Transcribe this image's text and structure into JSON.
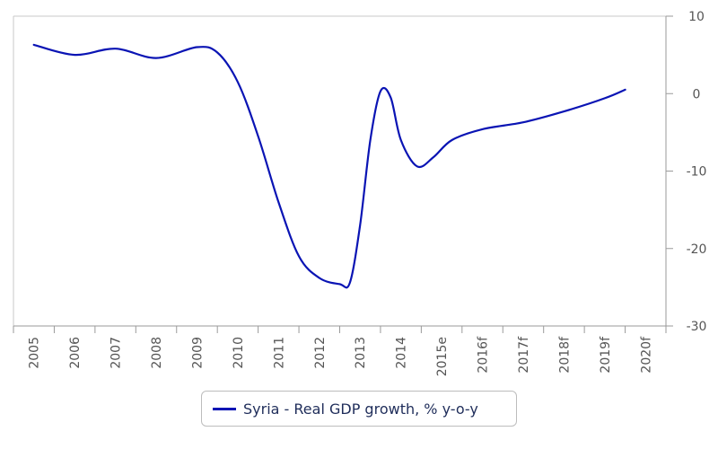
{
  "chart_data": {
    "type": "line",
    "title": "",
    "xlabel": "",
    "ylabel": "",
    "categories": [
      "2005",
      "2006",
      "2007",
      "2008",
      "2009",
      "2010",
      "2011",
      "2012",
      "2013",
      "2014",
      "2015e",
      "2016f",
      "2017f",
      "2018f",
      "2019f",
      "2020f"
    ],
    "ylim": [
      -30,
      10
    ],
    "yticks": [
      10,
      0,
      -10,
      -20,
      -30
    ],
    "y_axis_side": "right",
    "grid": false,
    "legend_position": "bottom-center",
    "series": [
      {
        "name": "Syria - Real GDP growth, % y-o-y",
        "color": "#0a14b4",
        "points": [
          {
            "x": 2005.5,
            "y": 6.3
          },
          {
            "x": 2006.5,
            "y": 5.0
          },
          {
            "x": 2007.5,
            "y": 5.8
          },
          {
            "x": 2008.5,
            "y": 4.6
          },
          {
            "x": 2009.5,
            "y": 6.0
          },
          {
            "x": 2010.0,
            "y": 5.3
          },
          {
            "x": 2010.5,
            "y": 1.5
          },
          {
            "x": 2011.0,
            "y": -5.5
          },
          {
            "x": 2011.5,
            "y": -14.0
          },
          {
            "x": 2012.0,
            "y": -21.0
          },
          {
            "x": 2012.5,
            "y": -23.8
          },
          {
            "x": 2013.0,
            "y": -24.6
          },
          {
            "x": 2013.25,
            "y": -24.4
          },
          {
            "x": 2013.5,
            "y": -17.0
          },
          {
            "x": 2013.75,
            "y": -6.0
          },
          {
            "x": 2014.0,
            "y": 0.3
          },
          {
            "x": 2014.25,
            "y": -0.5
          },
          {
            "x": 2014.5,
            "y": -6.0
          },
          {
            "x": 2014.9,
            "y": -9.4
          },
          {
            "x": 2015.3,
            "y": -8.2
          },
          {
            "x": 2015.75,
            "y": -6.0
          },
          {
            "x": 2016.5,
            "y": -4.6
          },
          {
            "x": 2017.5,
            "y": -3.7
          },
          {
            "x": 2018.5,
            "y": -2.3
          },
          {
            "x": 2019.5,
            "y": -0.6
          },
          {
            "x": 2020.0,
            "y": 0.5
          }
        ]
      }
    ]
  }
}
